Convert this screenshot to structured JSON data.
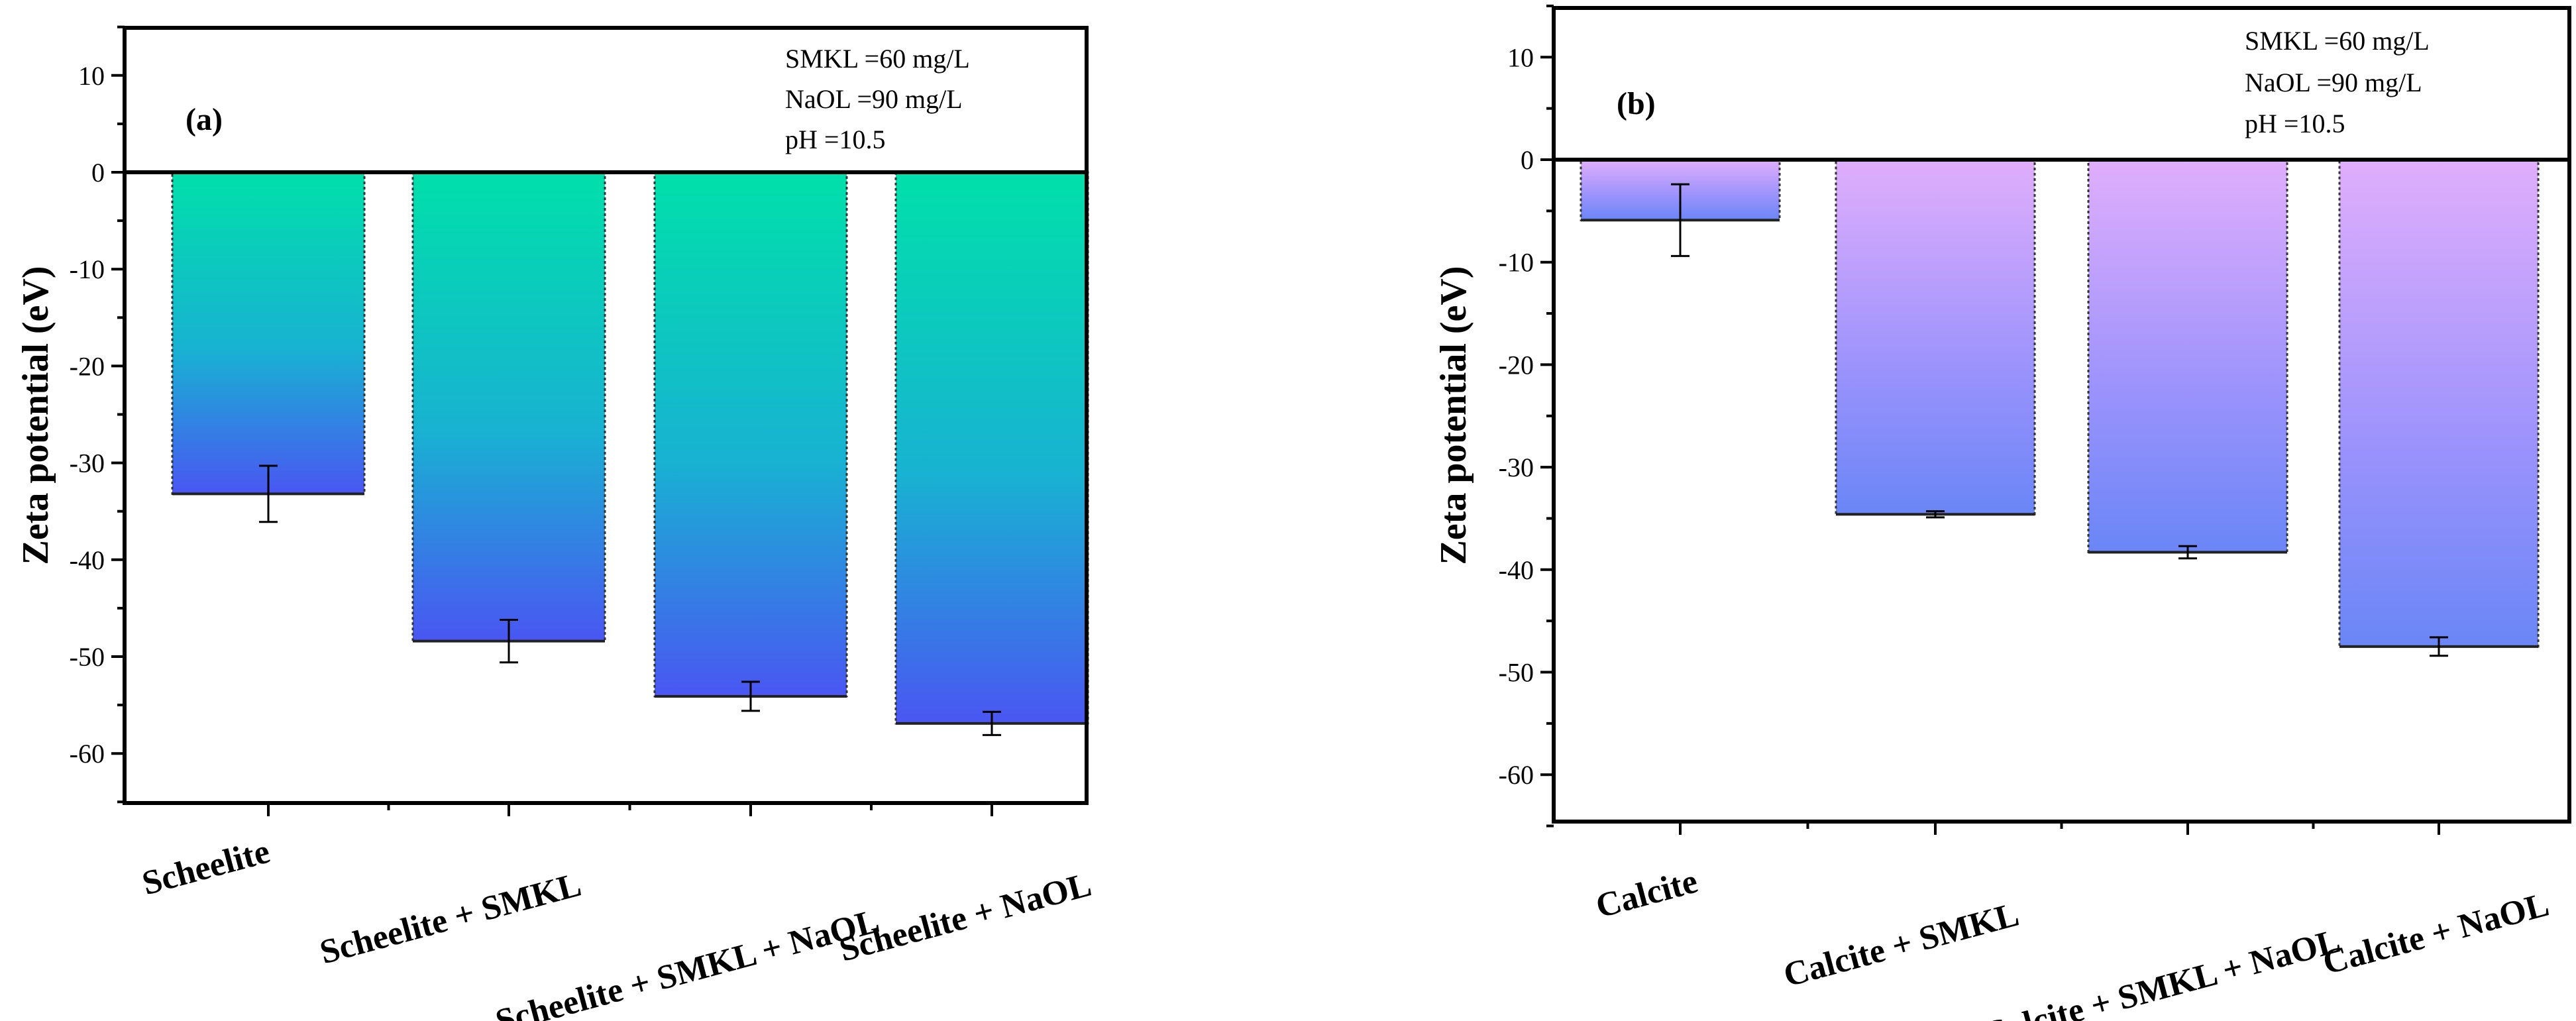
{
  "chart_data": [
    {
      "type": "bar",
      "panel_label": "(a)",
      "ylabel": "Zeta potential (eV)",
      "xlabel": "",
      "ylim": [
        -65,
        15
      ],
      "yticks": [
        10,
        0,
        -10,
        -20,
        -30,
        -40,
        -50,
        -60
      ],
      "ytick_labels": [
        "10",
        "0",
        "-10",
        "-20",
        "-30",
        "-40",
        "-50",
        "-60"
      ],
      "categories": [
        "Scheelite",
        "Scheelite + SMKL",
        "Scheelite + SMKL + NaOL",
        "Scheelite + NaOL"
      ],
      "values": [
        -33.2,
        -48.4,
        -54.1,
        -56.9
      ],
      "errors": [
        2.9,
        2.2,
        1.5,
        1.2
      ],
      "annotations": [
        "SMKL =60 mg/L",
        "NaOL =90 mg/L",
        "pH =10.5"
      ],
      "gradient_colors": [
        "#00e0aa",
        "#18b2d2",
        "#4a56f2"
      ]
    },
    {
      "type": "bar",
      "panel_label": "(b)",
      "ylabel": "Zeta potential (eV)",
      "xlabel": "",
      "ylim": [
        -65,
        15
      ],
      "yticks": [
        10,
        0,
        -10,
        -20,
        -30,
        -40,
        -50,
        -60
      ],
      "ytick_labels": [
        "10",
        "0",
        "-10",
        "-20",
        "-30",
        "-40",
        "-50",
        "-60"
      ],
      "categories": [
        "Calcite",
        "Calcite + SMKL",
        "Calcite + SMKL + NaOL",
        "Calcite + NaOL"
      ],
      "values": [
        -5.9,
        -34.6,
        -38.3,
        -47.5
      ],
      "errors": [
        3.5,
        0.3,
        0.6,
        0.9
      ],
      "annotations": [
        "SMKL =60 mg/L",
        "NaOL =90 mg/L",
        "pH =10.5"
      ],
      "gradient_colors": [
        "#e0aefc",
        "#9a92fc",
        "#6a86f6"
      ]
    }
  ]
}
